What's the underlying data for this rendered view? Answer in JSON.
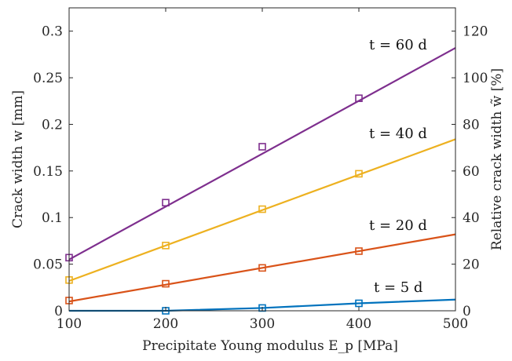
{
  "chart_data": {
    "type": "line",
    "xlabel": "Precipitate Young modulus E_p [MPa]",
    "ylabel": "Crack width w [mm]",
    "ylabel_right": "Relative crack width w̃ [%]",
    "xlim": [
      100,
      500
    ],
    "ylim": [
      0,
      0.325
    ],
    "ylim_right": [
      0,
      130
    ],
    "x_ticks": [
      100,
      200,
      300,
      400,
      500
    ],
    "y_ticks": [
      0,
      0.05,
      0.1,
      0.15,
      0.2,
      0.25,
      0.3
    ],
    "y_tick_labels": [
      "0",
      "0.05",
      "0.1",
      "0.15",
      "0.2",
      "0.25",
      "0.3"
    ],
    "y_right_ticks": [
      0,
      20,
      40,
      60,
      80,
      100,
      120
    ],
    "grid": false,
    "legend": "none",
    "series": [
      {
        "name": "t = 60 d",
        "color": "#7E2F8E",
        "line": [
          [
            100,
            0.055
          ],
          [
            500,
            0.282
          ]
        ],
        "markers": [
          [
            100,
            0.057
          ],
          [
            200,
            0.116
          ],
          [
            300,
            0.176
          ],
          [
            400,
            0.228
          ]
        ]
      },
      {
        "name": "t = 40 d",
        "color": "#EDB120",
        "line": [
          [
            100,
            0.032
          ],
          [
            500,
            0.184
          ]
        ],
        "markers": [
          [
            100,
            0.033
          ],
          [
            200,
            0.07
          ],
          [
            300,
            0.109
          ],
          [
            400,
            0.147
          ]
        ]
      },
      {
        "name": "t = 20 d",
        "color": "#D95319",
        "line": [
          [
            100,
            0.01
          ],
          [
            500,
            0.082
          ]
        ],
        "markers": [
          [
            100,
            0.011
          ],
          [
            200,
            0.029
          ],
          [
            300,
            0.046
          ],
          [
            400,
            0.064
          ]
        ]
      },
      {
        "name": "t = 5 d",
        "color": "#0072BD",
        "line": [
          [
            100,
            0.0
          ],
          [
            200,
            0.0
          ],
          [
            300,
            0.003
          ],
          [
            400,
            0.008
          ],
          [
            500,
            0.012
          ]
        ],
        "markers": [
          [
            200,
            0.0
          ],
          [
            300,
            0.003
          ],
          [
            400,
            0.008
          ]
        ]
      }
    ]
  }
}
